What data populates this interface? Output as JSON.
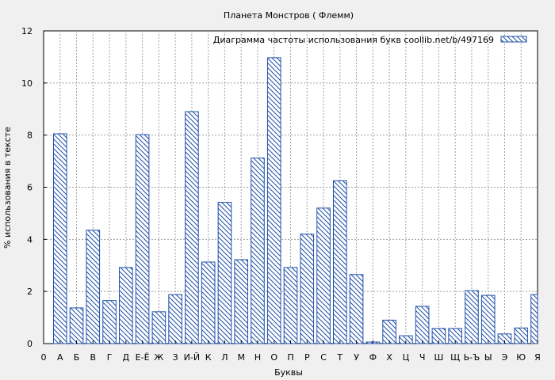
{
  "chart_data": {
    "type": "bar",
    "title": "Планета Монстров ( Флемм)",
    "xlabel": "Буквы",
    "ylabel": "% использования в тексте",
    "legend": {
      "label": "Диаграмма частоты использования букв  coollib.net/b/497169",
      "placement": "top-right"
    },
    "ylim": [
      0,
      12
    ],
    "yticks": [
      0,
      2,
      4,
      6,
      8,
      10,
      12
    ],
    "grid": true,
    "categories": [
      "0",
      "А",
      "Б",
      "В",
      "Г",
      "Д",
      "Е-Ё",
      "Ж",
      "З",
      "И-Й",
      "К",
      "Л",
      "М",
      "Н",
      "О",
      "П",
      "Р",
      "С",
      "Т",
      "У",
      "Ф",
      "Х",
      "Ц",
      "Ч",
      "Ш",
      "Щ",
      "Ь-Ъ",
      "Ы",
      "Э",
      "Ю",
      "Я"
    ],
    "values": [
      null,
      8.05,
      1.37,
      4.35,
      1.65,
      2.92,
      8.02,
      1.22,
      1.88,
      8.9,
      3.13,
      5.42,
      3.22,
      7.12,
      10.97,
      2.92,
      4.2,
      5.2,
      6.25,
      2.65,
      0.06,
      0.9,
      0.3,
      1.43,
      0.58,
      0.58,
      2.03,
      1.85,
      0.37,
      0.6,
      1.88
    ]
  },
  "colors": {
    "bar_stroke": "#1f4fa8",
    "hatch": "#1f4fa8",
    "plot_background": "#ffffff",
    "page_background": "#f0f0f0",
    "grid": "#a0a0a0"
  }
}
